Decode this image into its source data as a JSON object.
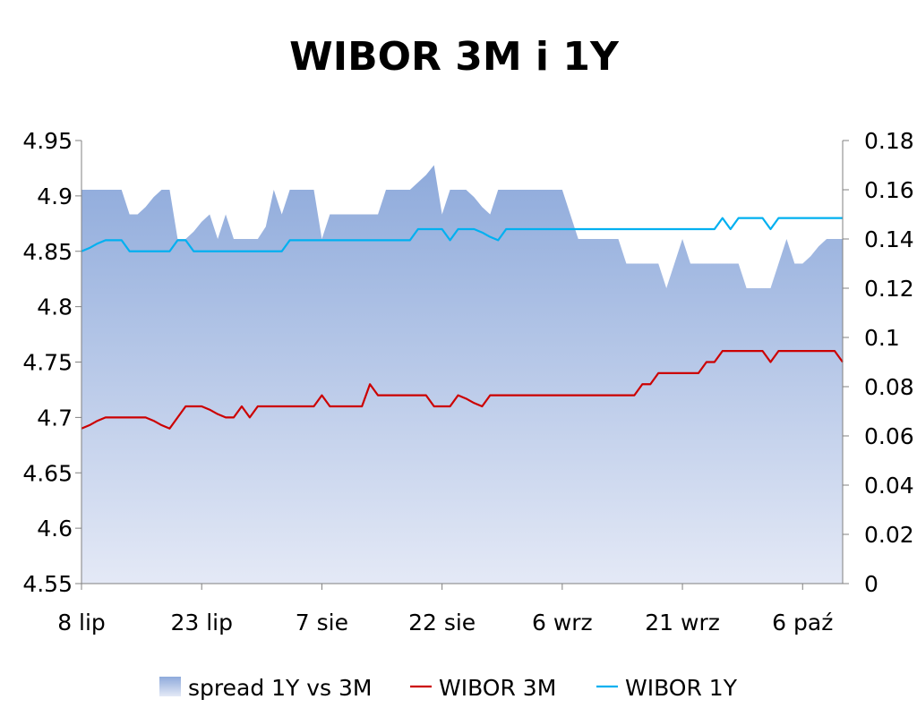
{
  "chart_data": {
    "type": "line",
    "title": "WIBOR 3M i 1Y",
    "xlabel": "",
    "ylabel": "",
    "x_ticks": [
      "8 lip",
      "23 lip",
      "7 sie",
      "22 sie",
      "6 wrz",
      "21 wrz",
      "6 paź"
    ],
    "x_range": [
      0,
      95
    ],
    "y_left": {
      "min": 4.55,
      "max": 4.95,
      "ticks": [
        "4.55",
        "4.6",
        "4.65",
        "4.7",
        "4.75",
        "4.8",
        "4.85",
        "4.9",
        "4.95"
      ]
    },
    "y_right": {
      "min": 0,
      "max": 0.18,
      "ticks": [
        "0",
        "0.02",
        "0.04",
        "0.06",
        "0.08",
        "0.1",
        "0.12",
        "0.14",
        "0.16",
        "0.18"
      ]
    },
    "grid": false,
    "legend_position": "bottom",
    "x": [
      0,
      1,
      2,
      3,
      4,
      5,
      6,
      7,
      8,
      9,
      10,
      11,
      12,
      13,
      14,
      15,
      16,
      17,
      18,
      19,
      20,
      21,
      22,
      23,
      24,
      25,
      26,
      27,
      28,
      29,
      30,
      31,
      32,
      33,
      34,
      35,
      36,
      37,
      38,
      39,
      40,
      41,
      42,
      43,
      44,
      45,
      46,
      47,
      48,
      49,
      50,
      51,
      52,
      53,
      54,
      55,
      56,
      57,
      58,
      59,
      60,
      61,
      62,
      63,
      64,
      65,
      66,
      67,
      68,
      69,
      70,
      71,
      72,
      73,
      74,
      75,
      76,
      77,
      78,
      79,
      80,
      81,
      82,
      83,
      84,
      85,
      86,
      87,
      88,
      89,
      90,
      91,
      92,
      93,
      94,
      95
    ],
    "series": [
      {
        "name": "spread 1Y vs 3M",
        "type": "area",
        "axis": "right",
        "values": [
          0.16,
          0.16,
          0.16,
          0.16,
          0.16,
          0.16,
          0.15,
          0.15,
          0.153,
          0.157,
          0.16,
          0.16,
          0.14,
          0.14,
          0.143,
          0.147,
          0.15,
          0.14,
          0.15,
          0.14,
          0.14,
          0.14,
          0.14,
          0.145,
          0.16,
          0.15,
          0.16,
          0.16,
          0.16,
          0.16,
          0.14,
          0.15,
          0.15,
          0.15,
          0.15,
          0.15,
          0.15,
          0.15,
          0.16,
          0.16,
          0.16,
          0.16,
          0.163,
          0.166,
          0.17,
          0.15,
          0.16,
          0.16,
          0.16,
          0.157,
          0.153,
          0.15,
          0.16,
          0.16,
          0.16,
          0.16,
          0.16,
          0.16,
          0.16,
          0.16,
          0.16,
          0.15,
          0.14,
          0.14,
          0.14,
          0.14,
          0.14,
          0.14,
          0.13,
          0.13,
          0.13,
          0.13,
          0.13,
          0.12,
          0.13,
          0.14,
          0.13,
          0.13,
          0.13,
          0.13,
          0.13,
          0.13,
          0.13,
          0.12,
          0.12,
          0.12,
          0.12,
          0.13,
          0.14,
          0.13,
          0.13,
          0.133,
          0.137,
          0.14,
          0.14,
          0.14
        ]
      },
      {
        "name": "WIBOR 3M",
        "type": "line",
        "axis": "left",
        "color": "#cc0000",
        "values": [
          4.69,
          4.693,
          4.697,
          4.7,
          4.7,
          4.7,
          4.7,
          4.7,
          4.7,
          4.697,
          4.693,
          4.69,
          4.7,
          4.71,
          4.71,
          4.71,
          4.707,
          4.703,
          4.7,
          4.7,
          4.71,
          4.7,
          4.71,
          4.71,
          4.71,
          4.71,
          4.71,
          4.71,
          4.71,
          4.71,
          4.72,
          4.71,
          4.71,
          4.71,
          4.71,
          4.71,
          4.73,
          4.72,
          4.72,
          4.72,
          4.72,
          4.72,
          4.72,
          4.72,
          4.71,
          4.71,
          4.71,
          4.72,
          4.717,
          4.713,
          4.71,
          4.72,
          4.72,
          4.72,
          4.72,
          4.72,
          4.72,
          4.72,
          4.72,
          4.72,
          4.72,
          4.72,
          4.72,
          4.72,
          4.72,
          4.72,
          4.72,
          4.72,
          4.72,
          4.72,
          4.73,
          4.73,
          4.74,
          4.74,
          4.74,
          4.74,
          4.74,
          4.74,
          4.75,
          4.75,
          4.76,
          4.76,
          4.76,
          4.76,
          4.76,
          4.76,
          4.75,
          4.76,
          4.76,
          4.76,
          4.76,
          4.76,
          4.76,
          4.76,
          4.76,
          4.75
        ]
      },
      {
        "name": "WIBOR 1Y",
        "type": "line",
        "axis": "left",
        "color": "#00b0f0",
        "values": [
          4.85,
          4.853,
          4.857,
          4.86,
          4.86,
          4.86,
          4.85,
          4.85,
          4.85,
          4.85,
          4.85,
          4.85,
          4.86,
          4.86,
          4.85,
          4.85,
          4.85,
          4.85,
          4.85,
          4.85,
          4.85,
          4.85,
          4.85,
          4.85,
          4.85,
          4.85,
          4.86,
          4.86,
          4.86,
          4.86,
          4.86,
          4.86,
          4.86,
          4.86,
          4.86,
          4.86,
          4.86,
          4.86,
          4.86,
          4.86,
          4.86,
          4.86,
          4.87,
          4.87,
          4.87,
          4.87,
          4.86,
          4.87,
          4.87,
          4.87,
          4.867,
          4.863,
          4.86,
          4.87,
          4.87,
          4.87,
          4.87,
          4.87,
          4.87,
          4.87,
          4.87,
          4.87,
          4.87,
          4.87,
          4.87,
          4.87,
          4.87,
          4.87,
          4.87,
          4.87,
          4.87,
          4.87,
          4.87,
          4.87,
          4.87,
          4.87,
          4.87,
          4.87,
          4.87,
          4.87,
          4.88,
          4.87,
          4.88,
          4.88,
          4.88,
          4.88,
          4.87,
          4.88,
          4.88,
          4.88,
          4.88,
          4.88,
          4.88,
          4.88,
          4.88,
          4.88
        ]
      }
    ]
  },
  "legend": [
    {
      "label": "spread 1Y vs 3M",
      "kind": "area"
    },
    {
      "label": "WIBOR 3M",
      "kind": "line",
      "color": "#cc0000"
    },
    {
      "label": "WIBOR 1Y",
      "kind": "line",
      "color": "#00b0f0"
    }
  ],
  "colors": {
    "area_top": "#8eaadb",
    "area_bottom": "#e4e9f6",
    "axis": "#808080"
  }
}
